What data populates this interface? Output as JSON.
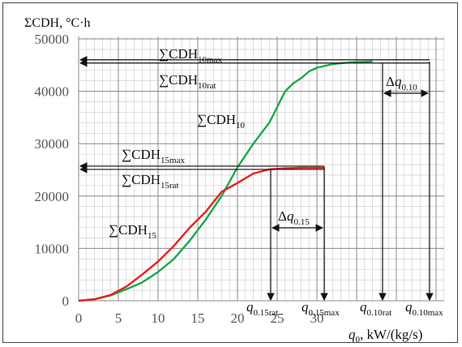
{
  "chart_data": {
    "type": "line",
    "ylabel": "ΣCDH, °C·h",
    "xlabel": "q0, kW/(kg/s)",
    "xlim": [
      0,
      36
    ],
    "ylim": [
      0,
      50000
    ],
    "x_ticks": [
      "0",
      "5",
      "10",
      "15",
      "20",
      "25",
      "30"
    ],
    "y_ticks": [
      "0",
      "10000",
      "20000",
      "30000",
      "40000",
      "50000"
    ],
    "grid": true,
    "series": [
      {
        "name": "ΣCDH10",
        "color": "#1aa84a",
        "points": [
          [
            0,
            0
          ],
          [
            2,
            300
          ],
          [
            4,
            1000
          ],
          [
            6,
            2200
          ],
          [
            8,
            3500
          ],
          [
            10,
            5500
          ],
          [
            12,
            8000
          ],
          [
            14,
            11500
          ],
          [
            16,
            15500
          ],
          [
            18,
            20000
          ],
          [
            20,
            25500
          ],
          [
            22,
            30000
          ],
          [
            24,
            34000
          ],
          [
            25,
            37000
          ],
          [
            26,
            40000
          ],
          [
            27,
            41500
          ],
          [
            28,
            42500
          ],
          [
            29,
            43800
          ],
          [
            30,
            44500
          ],
          [
            32,
            45200
          ],
          [
            34,
            45500
          ],
          [
            35,
            45600
          ],
          [
            37,
            45700
          ]
        ]
      },
      {
        "name": "ΣCDH15",
        "color": "#e8201c",
        "points": [
          [
            0,
            0
          ],
          [
            2,
            300
          ],
          [
            4,
            1100
          ],
          [
            6,
            2700
          ],
          [
            8,
            5000
          ],
          [
            10,
            7500
          ],
          [
            12,
            10500
          ],
          [
            14,
            14000
          ],
          [
            16,
            17000
          ],
          [
            18,
            20800
          ],
          [
            20,
            22500
          ],
          [
            22,
            24300
          ],
          [
            24,
            25100
          ],
          [
            26,
            25300
          ],
          [
            28,
            25400
          ],
          [
            30,
            25400
          ],
          [
            31,
            25400
          ]
        ]
      }
    ],
    "annotations": {
      "cdh10max": {
        "text": "∑CDH",
        "sub": "10max",
        "y": 45700
      },
      "cdh10rat": {
        "text": "∑CDH",
        "sub": "10rat"
      },
      "cdh15max": {
        "text": "∑CDH",
        "sub": "15max",
        "y": 25400
      },
      "cdh15rat": {
        "text": "∑CDH",
        "sub": "15rat"
      },
      "cdh10_label": {
        "text": "∑CDH",
        "sub": "10"
      },
      "cdh15_label": {
        "text": "∑CDH",
        "sub": "15"
      },
      "dq015": {
        "text": "Δq",
        "sub": "0.15"
      },
      "dq010": {
        "text": "Δq",
        "sub": "0.10"
      },
      "q015rat": {
        "text": "q",
        "sub": "0.15rat",
        "x": 24
      },
      "q015max": {
        "text": "q",
        "sub": "0.15max",
        "x": 31
      },
      "q010rat": {
        "text": "q",
        "sub": "0.10rat",
        "x": 35
      },
      "q010max": {
        "text": "q",
        "sub": "0.10max",
        "x": 40.5
      }
    }
  }
}
